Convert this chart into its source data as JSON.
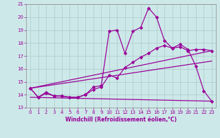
{
  "xlabel": "Windchill (Refroidissement éolien,°C)",
  "xlim": [
    -0.5,
    23.5
  ],
  "ylim": [
    13,
    21
  ],
  "yticks": [
    13,
    14,
    15,
    16,
    17,
    18,
    19,
    20,
    21
  ],
  "xticks": [
    0,
    1,
    2,
    3,
    4,
    5,
    6,
    7,
    8,
    9,
    10,
    11,
    12,
    13,
    14,
    15,
    16,
    17,
    18,
    19,
    20,
    21,
    22,
    23
  ],
  "background_color": "#cde8e8",
  "grid_color": "#b0d0d0",
  "line_color": "#990099",
  "line1_y": [
    14.5,
    13.8,
    14.2,
    13.9,
    13.9,
    13.8,
    13.8,
    14.0,
    14.6,
    14.7,
    18.9,
    19.0,
    17.2,
    18.9,
    19.2,
    20.7,
    20.0,
    18.2,
    17.6,
    17.9,
    17.5,
    16.2,
    14.3,
    13.5
  ],
  "line2_y": [
    14.5,
    13.8,
    14.1,
    13.9,
    13.9,
    13.8,
    13.8,
    14.0,
    14.4,
    14.6,
    15.5,
    15.3,
    16.1,
    16.5,
    16.9,
    17.2,
    17.6,
    17.8,
    17.6,
    17.7,
    17.4,
    17.5,
    17.5,
    17.4
  ],
  "line3_y": [
    14.5,
    17.4
  ],
  "line3_x": [
    0,
    23
  ],
  "line4_y": [
    14.5,
    16.6
  ],
  "line4_x": [
    0,
    23
  ],
  "line5_y": [
    13.8,
    13.5
  ],
  "line5_x": [
    0,
    23
  ],
  "markersize": 2.5,
  "linewidth": 0.9
}
